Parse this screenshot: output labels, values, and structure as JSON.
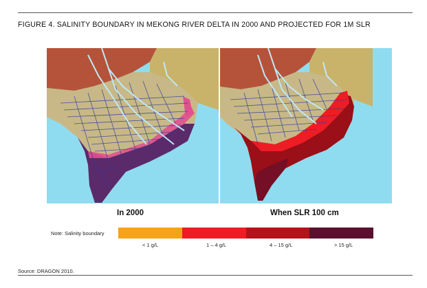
{
  "figure": {
    "title": "FIGURE 4.  SALINITY BOUNDARY IN MEKONG RIVER DELTA IN 2000 AND PROJECTED FOR 1M SLR",
    "source": "Source: DRAGON 2010."
  },
  "panels": [
    {
      "label": "In 2000"
    },
    {
      "label": "When SLR 100 cm"
    }
  ],
  "legend": {
    "note": "Note: Salinity boundary",
    "items": [
      {
        "label": "< 1 g/L",
        "color": "#f7a21b"
      },
      {
        "label": "1 – 4 g/L",
        "color": "#ee1c24"
      },
      {
        "label": "4 – 15 g/L",
        "color": "#b3121b"
      },
      {
        "label": "> 15 g/L",
        "color": "#5b0f2e"
      }
    ]
  },
  "map_colors": {
    "sea": "#8fdcf0",
    "upland_brown": "#b5533a",
    "upland_tan": "#c9b36a",
    "delta_land": "#c8b887",
    "canals": "#2e3f9c",
    "rivers": "#bfe8f5",
    "saline_2000_pink": "#e0518f",
    "saline_2000_purple": "#5b2a6b"
  }
}
